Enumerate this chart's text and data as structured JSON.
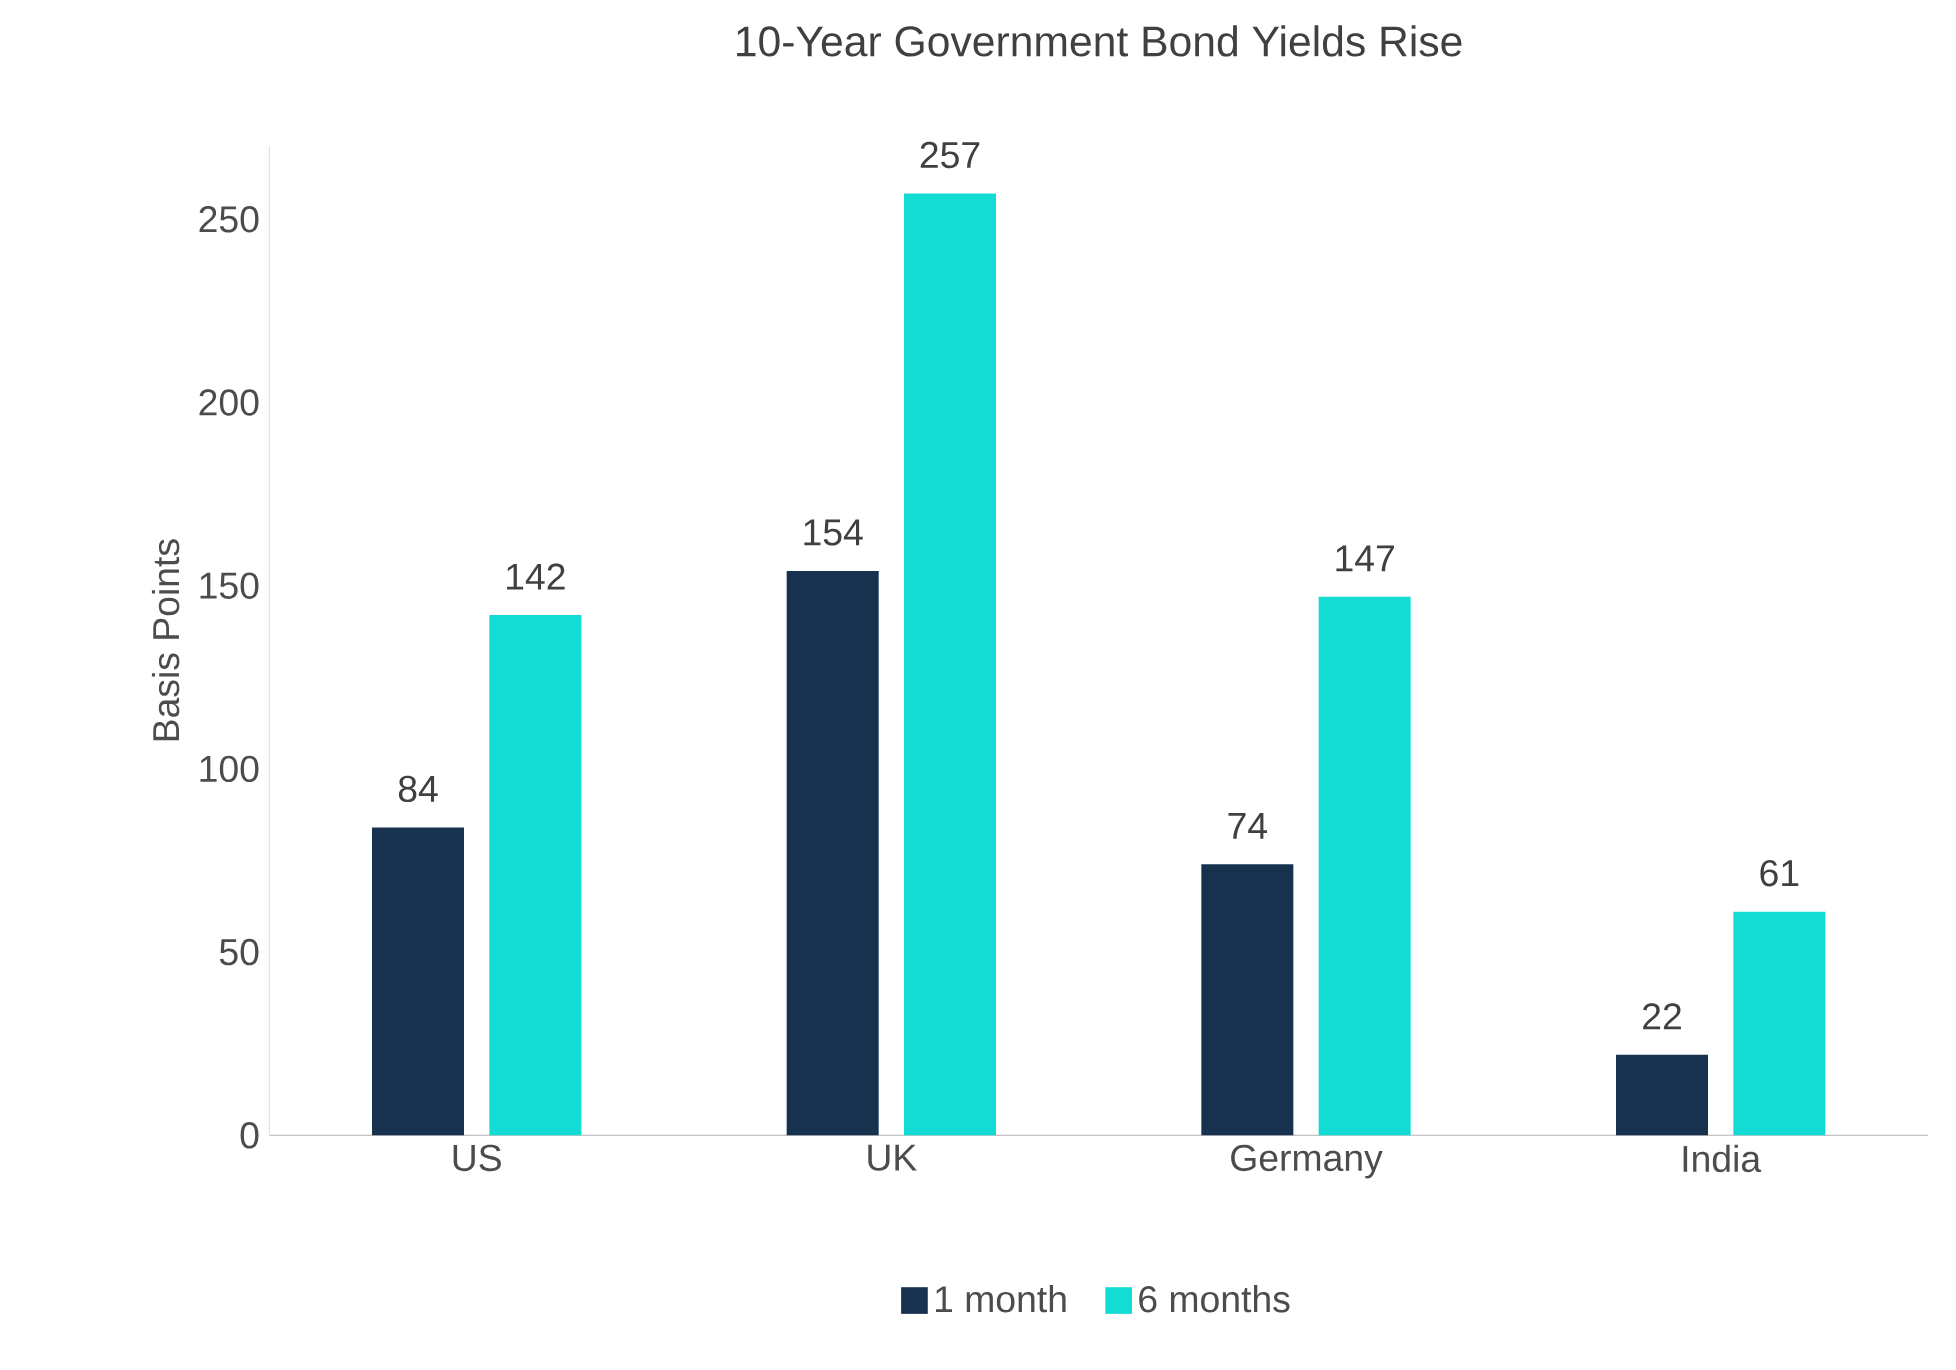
{
  "chart_data": {
    "type": "bar",
    "title": "10-Year Government Bond Yields Rise",
    "ylabel": "Basis Points",
    "categories": [
      "US",
      "UK",
      "Germany",
      "India"
    ],
    "series": [
      {
        "name": "1 month",
        "color": "#17324f",
        "values": [
          84,
          154,
          74,
          22
        ]
      },
      {
        "name": "6 months",
        "color": "#12dcd4",
        "values": [
          142,
          257,
          147,
          61
        ]
      }
    ],
    "ylim": [
      0,
      270
    ],
    "yticks": [
      0,
      50,
      100,
      150,
      200,
      250
    ],
    "data_labels": true,
    "legend": "bottom",
    "grid": false
  }
}
